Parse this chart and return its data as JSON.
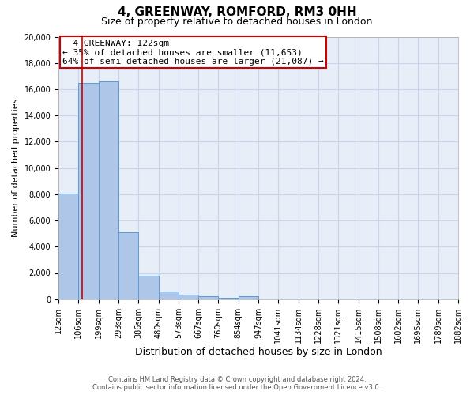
{
  "title": "4, GREENWAY, ROMFORD, RM3 0HH",
  "subtitle": "Size of property relative to detached houses in London",
  "xlabel": "Distribution of detached houses by size in London",
  "ylabel": "Number of detached properties",
  "footer_line1": "Contains HM Land Registry data © Crown copyright and database right 2024.",
  "footer_line2": "Contains public sector information licensed under the Open Government Licence v3.0.",
  "annotation_line1": "4 GREENWAY: 122sqm",
  "annotation_line2": "← 35% of detached houses are smaller (11,653)",
  "annotation_line3": "64% of semi-detached houses are larger (21,087) →",
  "property_size": 122,
  "bar_edges": [
    12,
    106,
    199,
    293,
    386,
    480,
    573,
    667,
    760,
    854,
    947,
    1041,
    1134,
    1228,
    1321,
    1415,
    1508,
    1602,
    1695,
    1789,
    1882
  ],
  "bar_labels": [
    "12sqm",
    "106sqm",
    "199sqm",
    "293sqm",
    "386sqm",
    "480sqm",
    "573sqm",
    "667sqm",
    "760sqm",
    "854sqm",
    "947sqm",
    "1041sqm",
    "1134sqm",
    "1228sqm",
    "1321sqm",
    "1415sqm",
    "1508sqm",
    "1602sqm",
    "1695sqm",
    "1789sqm",
    "1882sqm"
  ],
  "bar_heights": [
    8050,
    16500,
    16600,
    5100,
    1800,
    600,
    350,
    200,
    130,
    250,
    0,
    0,
    0,
    0,
    0,
    0,
    0,
    0,
    0,
    0
  ],
  "bar_color": "#aec6e8",
  "bar_edge_color": "#5b9bd5",
  "vline_color": "#cc0000",
  "ylim": [
    0,
    20000
  ],
  "yticks": [
    0,
    2000,
    4000,
    6000,
    8000,
    10000,
    12000,
    14000,
    16000,
    18000,
    20000
  ],
  "grid_color": "#c8d4e8",
  "bg_color": "#e8eef8",
  "annotation_box_color": "#cc0000",
  "title_fontsize": 11,
  "subtitle_fontsize": 9,
  "ylabel_fontsize": 8,
  "xlabel_fontsize": 9,
  "tick_fontsize": 7,
  "footer_fontsize": 6,
  "annotation_fontsize": 8
}
